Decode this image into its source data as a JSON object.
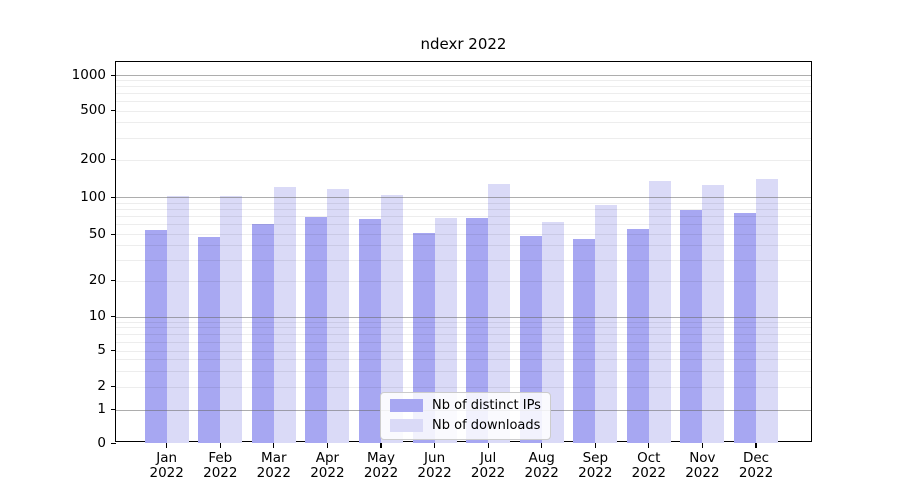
{
  "chart_data": {
    "type": "bar",
    "title": "ndexr 2022",
    "categories": [
      "Jan",
      "Feb",
      "Mar",
      "Apr",
      "May",
      "Jun",
      "Jul",
      "Aug",
      "Sep",
      "Oct",
      "Nov",
      "Dec"
    ],
    "category_year": "2022",
    "series": [
      {
        "name": "Nb of distinct IPs",
        "color": "#a7a7f2",
        "values": [
          54,
          47,
          60,
          69,
          66,
          51,
          68,
          48,
          45,
          55,
          78,
          74
        ]
      },
      {
        "name": "Nb of downloads",
        "color": "#dadaf7",
        "values": [
          102,
          102,
          121,
          117,
          104,
          67,
          127,
          63,
          86,
          135,
          125,
          139
        ]
      }
    ],
    "xlabel": "",
    "ylabel": "",
    "yscale": "symlog",
    "y_ticks": [
      0,
      1,
      2,
      5,
      10,
      20,
      50,
      100,
      200,
      500,
      1000
    ],
    "ylim": [
      0,
      1300
    ],
    "grid": true,
    "legend_position": "lower center"
  }
}
